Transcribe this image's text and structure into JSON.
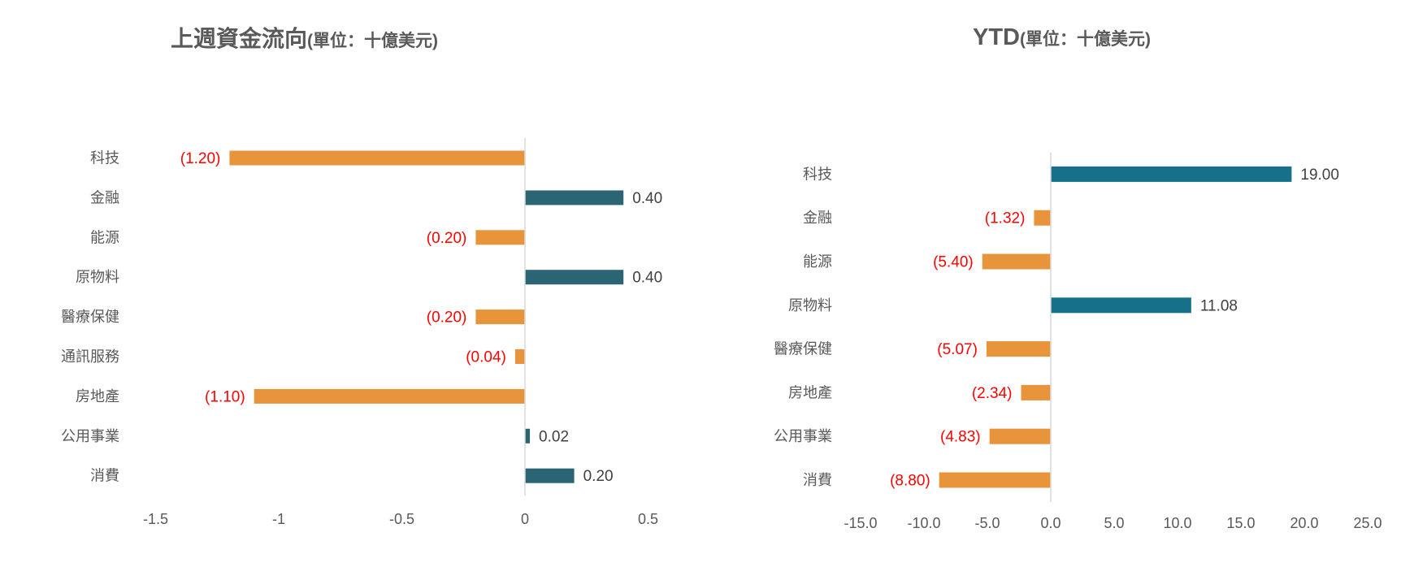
{
  "chart_data": [
    {
      "type": "bar",
      "orientation": "horizontal",
      "title": "上週資金流向",
      "title_unit": "(單位：十億美元)",
      "categories": [
        "科技",
        "金融",
        "能源",
        "原物料",
        "醫療保健",
        "通訊服務",
        "房地產",
        "公用事業",
        "消費"
      ],
      "values": [
        -1.2,
        0.4,
        -0.2,
        0.4,
        -0.2,
        -0.04,
        -1.1,
        0.02,
        0.2
      ],
      "data_labels": [
        "(1.20)",
        "0.40",
        "(0.20)",
        "0.40",
        "(0.20)",
        "(0.04)",
        "(1.10)",
        "0.02",
        "0.20"
      ],
      "xlim": [
        -1.5,
        0.5
      ],
      "xtick_values": [
        -1.5,
        -1,
        -0.5,
        0,
        0.5
      ],
      "xtick_labels": [
        "-1.5",
        "-1",
        "-0.5",
        "0",
        "0.5"
      ],
      "grid": false,
      "legend": "none",
      "bar_colors": {
        "positive": "#2B6573",
        "negative": "#E8943A"
      },
      "label_colors": {
        "positive": "#404040",
        "negative": "#FF0000"
      }
    },
    {
      "type": "bar",
      "orientation": "horizontal",
      "title": "YTD",
      "title_unit": "(單位：十億美元)",
      "categories": [
        "科技",
        "金融",
        "能源",
        "原物料",
        "醫療保健",
        "房地產",
        "公用事業",
        "消費"
      ],
      "values": [
        19.0,
        -1.32,
        -5.4,
        11.08,
        -5.07,
        -2.34,
        -4.83,
        -8.8
      ],
      "data_labels": [
        "19.00",
        "(1.32)",
        "(5.40)",
        "11.08",
        "(5.07)",
        "(2.34)",
        "(4.83)",
        "(8.80)"
      ],
      "xlim": [
        -15,
        25
      ],
      "xtick_values": [
        -15,
        -10,
        -5,
        0,
        5,
        10,
        15,
        20,
        25
      ],
      "xtick_labels": [
        "-15.0",
        "-10.0",
        "-5.0",
        "0.0",
        "5.0",
        "10.0",
        "15.0",
        "20.0",
        "25.0"
      ],
      "grid": false,
      "legend": "none",
      "bar_colors": {
        "positive": "#16708A",
        "negative": "#E8943A"
      },
      "label_colors": {
        "positive": "#404040",
        "negative": "#FF0000"
      }
    }
  ]
}
